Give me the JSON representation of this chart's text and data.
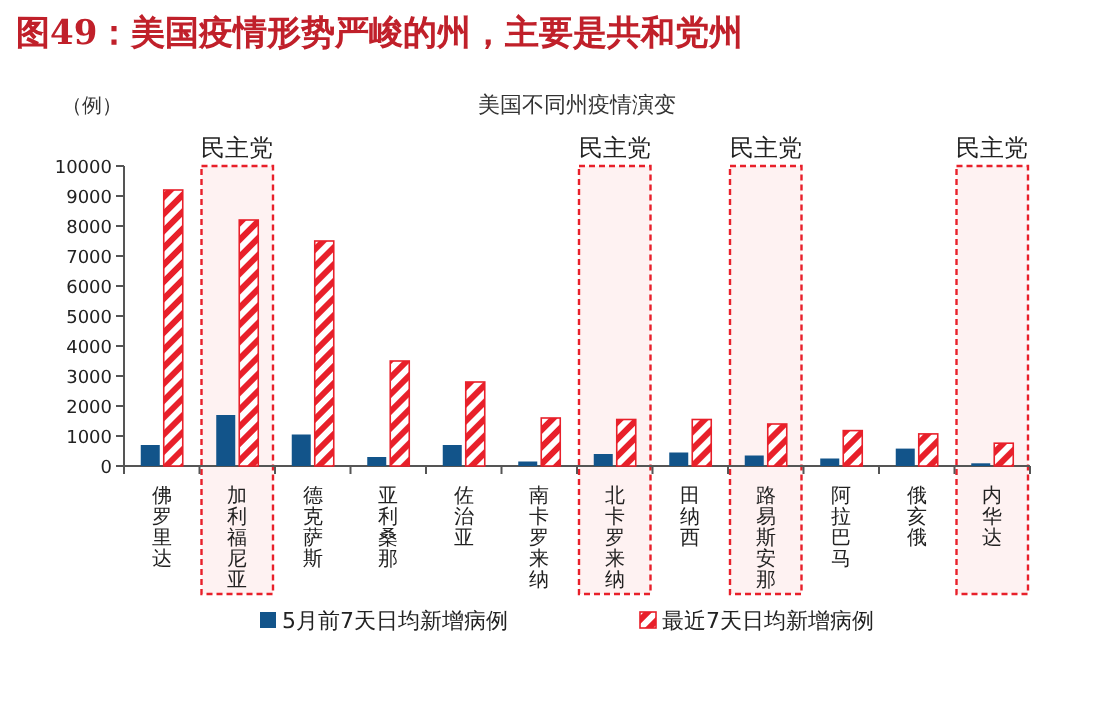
{
  "chart_data": {
    "type": "bar",
    "title": "图49：美国疫情形势严峻的州，主要是共和党州",
    "subtitle": "美国不同州疫情演变",
    "ylabel": "（例）",
    "categories": [
      "佛罗里达",
      "加利福尼亚",
      "德克萨斯",
      "亚利桑那",
      "佐治亚",
      "南卡罗来纳",
      "北卡罗来纳",
      "田纳西",
      "路易斯安那",
      "阿拉巴马",
      "俄亥俄",
      "内华达"
    ],
    "series": [
      {
        "name": "5月前7天日均新增病例",
        "color": "#12548a",
        "values": [
          700,
          1700,
          1050,
          300,
          700,
          150,
          400,
          450,
          350,
          250,
          580,
          90
        ]
      },
      {
        "name": "最近7天日均新增病例",
        "color": "#e8202a",
        "values": [
          9200,
          8200,
          7500,
          3500,
          2800,
          1600,
          1550,
          1550,
          1400,
          1180,
          1070,
          760
        ]
      }
    ],
    "ylim": [
      0,
      10000
    ],
    "yticks": [
      0,
      1000,
      2000,
      3000,
      4000,
      5000,
      6000,
      7000,
      8000,
      9000,
      10000
    ],
    "bands": [
      {
        "axis": "x",
        "from": "加利福尼亚",
        "to": "加利福尼亚",
        "label": "民主党",
        "color": "#e8202a"
      },
      {
        "axis": "x",
        "from": "北卡罗来纳",
        "to": "北卡罗来纳",
        "label": "民主党",
        "color": "#e8202a"
      },
      {
        "axis": "x",
        "from": "路易斯安那",
        "to": "路易斯安那",
        "label": "民主党",
        "color": "#e8202a"
      },
      {
        "axis": "x",
        "from": "内华达",
        "to": "内华达",
        "label": "民主党",
        "color": "#e8202a"
      }
    ],
    "grid": false,
    "legend": "bottom"
  }
}
